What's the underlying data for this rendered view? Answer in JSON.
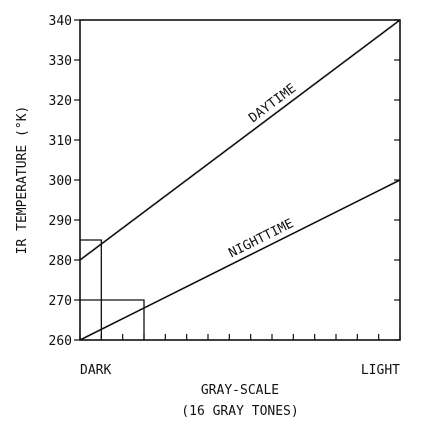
{
  "chart_data": {
    "type": "line",
    "ylabel": "IR TEMPERATURE (°K)",
    "xlabel_line1": "GRAY-SCALE",
    "xlabel_line2": "(16 GRAY TONES)",
    "x_start_label": "DARK",
    "x_end_label": "LIGHT",
    "xlim": [
      0,
      15
    ],
    "ylim": [
      260,
      340
    ],
    "y_ticks": [
      260,
      270,
      280,
      290,
      300,
      310,
      320,
      330,
      340
    ],
    "x_ticks": [
      0,
      1,
      2,
      3,
      4,
      5,
      6,
      7,
      8,
      9,
      10,
      11,
      12,
      13,
      14,
      15
    ],
    "grid": false,
    "series": [
      {
        "name": "DAYTIME",
        "x": [
          0,
          15
        ],
        "y": [
          280,
          340
        ]
      },
      {
        "name": "NIGHTTIME",
        "x": [
          0,
          15
        ],
        "y": [
          260,
          300
        ]
      }
    ],
    "guides": [
      {
        "points": [
          [
            0,
            285
          ],
          [
            1,
            285
          ],
          [
            1,
            260
          ]
        ]
      },
      {
        "points": [
          [
            0,
            270
          ],
          [
            3,
            270
          ],
          [
            3,
            260
          ]
        ]
      }
    ]
  }
}
